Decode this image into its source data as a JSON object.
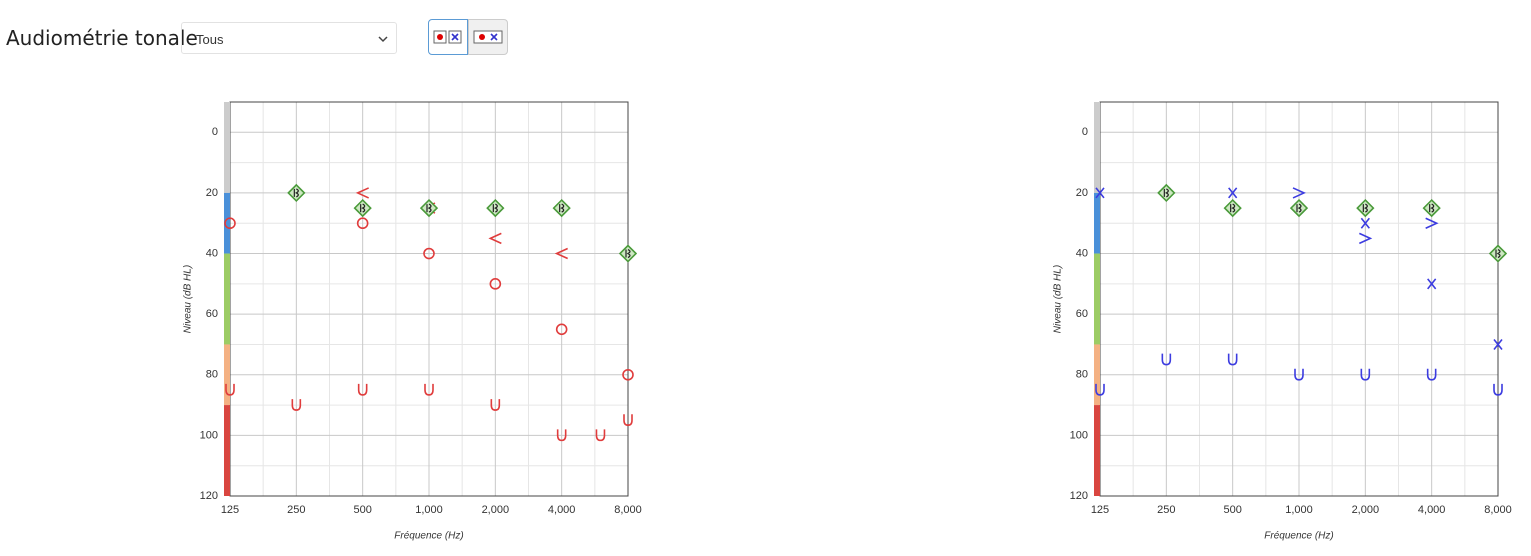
{
  "header": {
    "title": "Audiométrie tonale",
    "select": "Tous"
  },
  "chart_data": [
    {
      "type": "line",
      "xscale": "log",
      "xlim": [
        125,
        8000
      ],
      "ylim": [
        -10,
        120
      ],
      "y_inverted": true,
      "grid": true,
      "xticks": [
        125,
        250,
        500,
        {
          "value": 1000,
          "label": "1,000"
        },
        {
          "value": 2000,
          "label": "2,000"
        },
        {
          "value": 4000,
          "label": "4,000"
        },
        {
          "value": 8000,
          "label": "8,000"
        }
      ],
      "yticks": [
        0,
        20,
        40,
        60,
        80,
        100,
        120
      ],
      "xlabel": "Fréquence (Hz)",
      "ylabel": "Niveau (dB HL)",
      "bands": [
        {
          "from": -10,
          "to": 20,
          "color": "#cccccc"
        },
        {
          "from": 20,
          "to": 40,
          "color": "#4a90d9"
        },
        {
          "from": 40,
          "to": 70,
          "color": "#9ccc65"
        },
        {
          "from": 70,
          "to": 90,
          "color": "#f4b183"
        },
        {
          "from": 90,
          "to": 120,
          "color": "#d9453f"
        }
      ],
      "series": [
        {
          "color": "#e03c3c",
          "marker": "circle",
          "x": [
            125,
            250,
            500,
            1000,
            2000,
            4000,
            8000
          ],
          "values": [
            30,
            20,
            30,
            40,
            50,
            65,
            80
          ]
        },
        {
          "color": "#e03c3c",
          "marker": "lt",
          "x": [
            500,
            1000,
            2000,
            4000
          ],
          "values": [
            20,
            25,
            35,
            40
          ]
        },
        {
          "color": "#e03c3c",
          "marker": "u",
          "x": [
            125,
            250,
            500,
            1000,
            2000,
            4000,
            6000,
            8000
          ],
          "values": [
            85,
            90,
            85,
            85,
            90,
            100,
            100,
            95
          ]
        },
        {
          "color": "#4a9a3a",
          "marker": "diamond",
          "x": [
            250,
            500,
            1000,
            2000,
            4000,
            8000
          ],
          "values": [
            20,
            25,
            25,
            25,
            25,
            40
          ]
        }
      ]
    },
    {
      "type": "line",
      "xscale": "log",
      "xlim": [
        125,
        8000
      ],
      "ylim": [
        -10,
        120
      ],
      "y_inverted": true,
      "grid": true,
      "xticks": [
        125,
        250,
        500,
        {
          "value": 1000,
          "label": "1,000"
        },
        {
          "value": 2000,
          "label": "2,000"
        },
        {
          "value": 4000,
          "label": "4,000"
        },
        {
          "value": 8000,
          "label": "8,000"
        }
      ],
      "yticks": [
        0,
        20,
        40,
        60,
        80,
        100,
        120
      ],
      "xlabel": "Fréquence (Hz)",
      "ylabel": "Niveau (dB HL)",
      "bands": [
        {
          "from": -10,
          "to": 20,
          "color": "#cccccc"
        },
        {
          "from": 20,
          "to": 40,
          "color": "#4a90d9"
        },
        {
          "from": 40,
          "to": 70,
          "color": "#9ccc65"
        },
        {
          "from": 70,
          "to": 90,
          "color": "#f4b183"
        },
        {
          "from": 90,
          "to": 120,
          "color": "#d9453f"
        }
      ],
      "series": [
        {
          "color": "#3c3ce0",
          "marker": "x",
          "x": [
            125,
            250,
            500,
            1000,
            2000,
            4000,
            8000
          ],
          "values": [
            20,
            20,
            20,
            25,
            30,
            50,
            70
          ]
        },
        {
          "color": "#3c3ce0",
          "marker": "gt",
          "x": [
            1000,
            2000,
            4000
          ],
          "values": [
            20,
            35,
            30
          ]
        },
        {
          "color": "#3c3ce0",
          "marker": "u",
          "x": [
            125,
            250,
            500,
            1000,
            2000,
            4000,
            8000
          ],
          "values": [
            85,
            75,
            75,
            80,
            80,
            80,
            85
          ]
        },
        {
          "color": "#4a9a3a",
          "marker": "diamond",
          "x": [
            250,
            500,
            1000,
            2000,
            4000,
            8000
          ],
          "values": [
            20,
            25,
            25,
            25,
            25,
            40
          ]
        }
      ]
    }
  ]
}
